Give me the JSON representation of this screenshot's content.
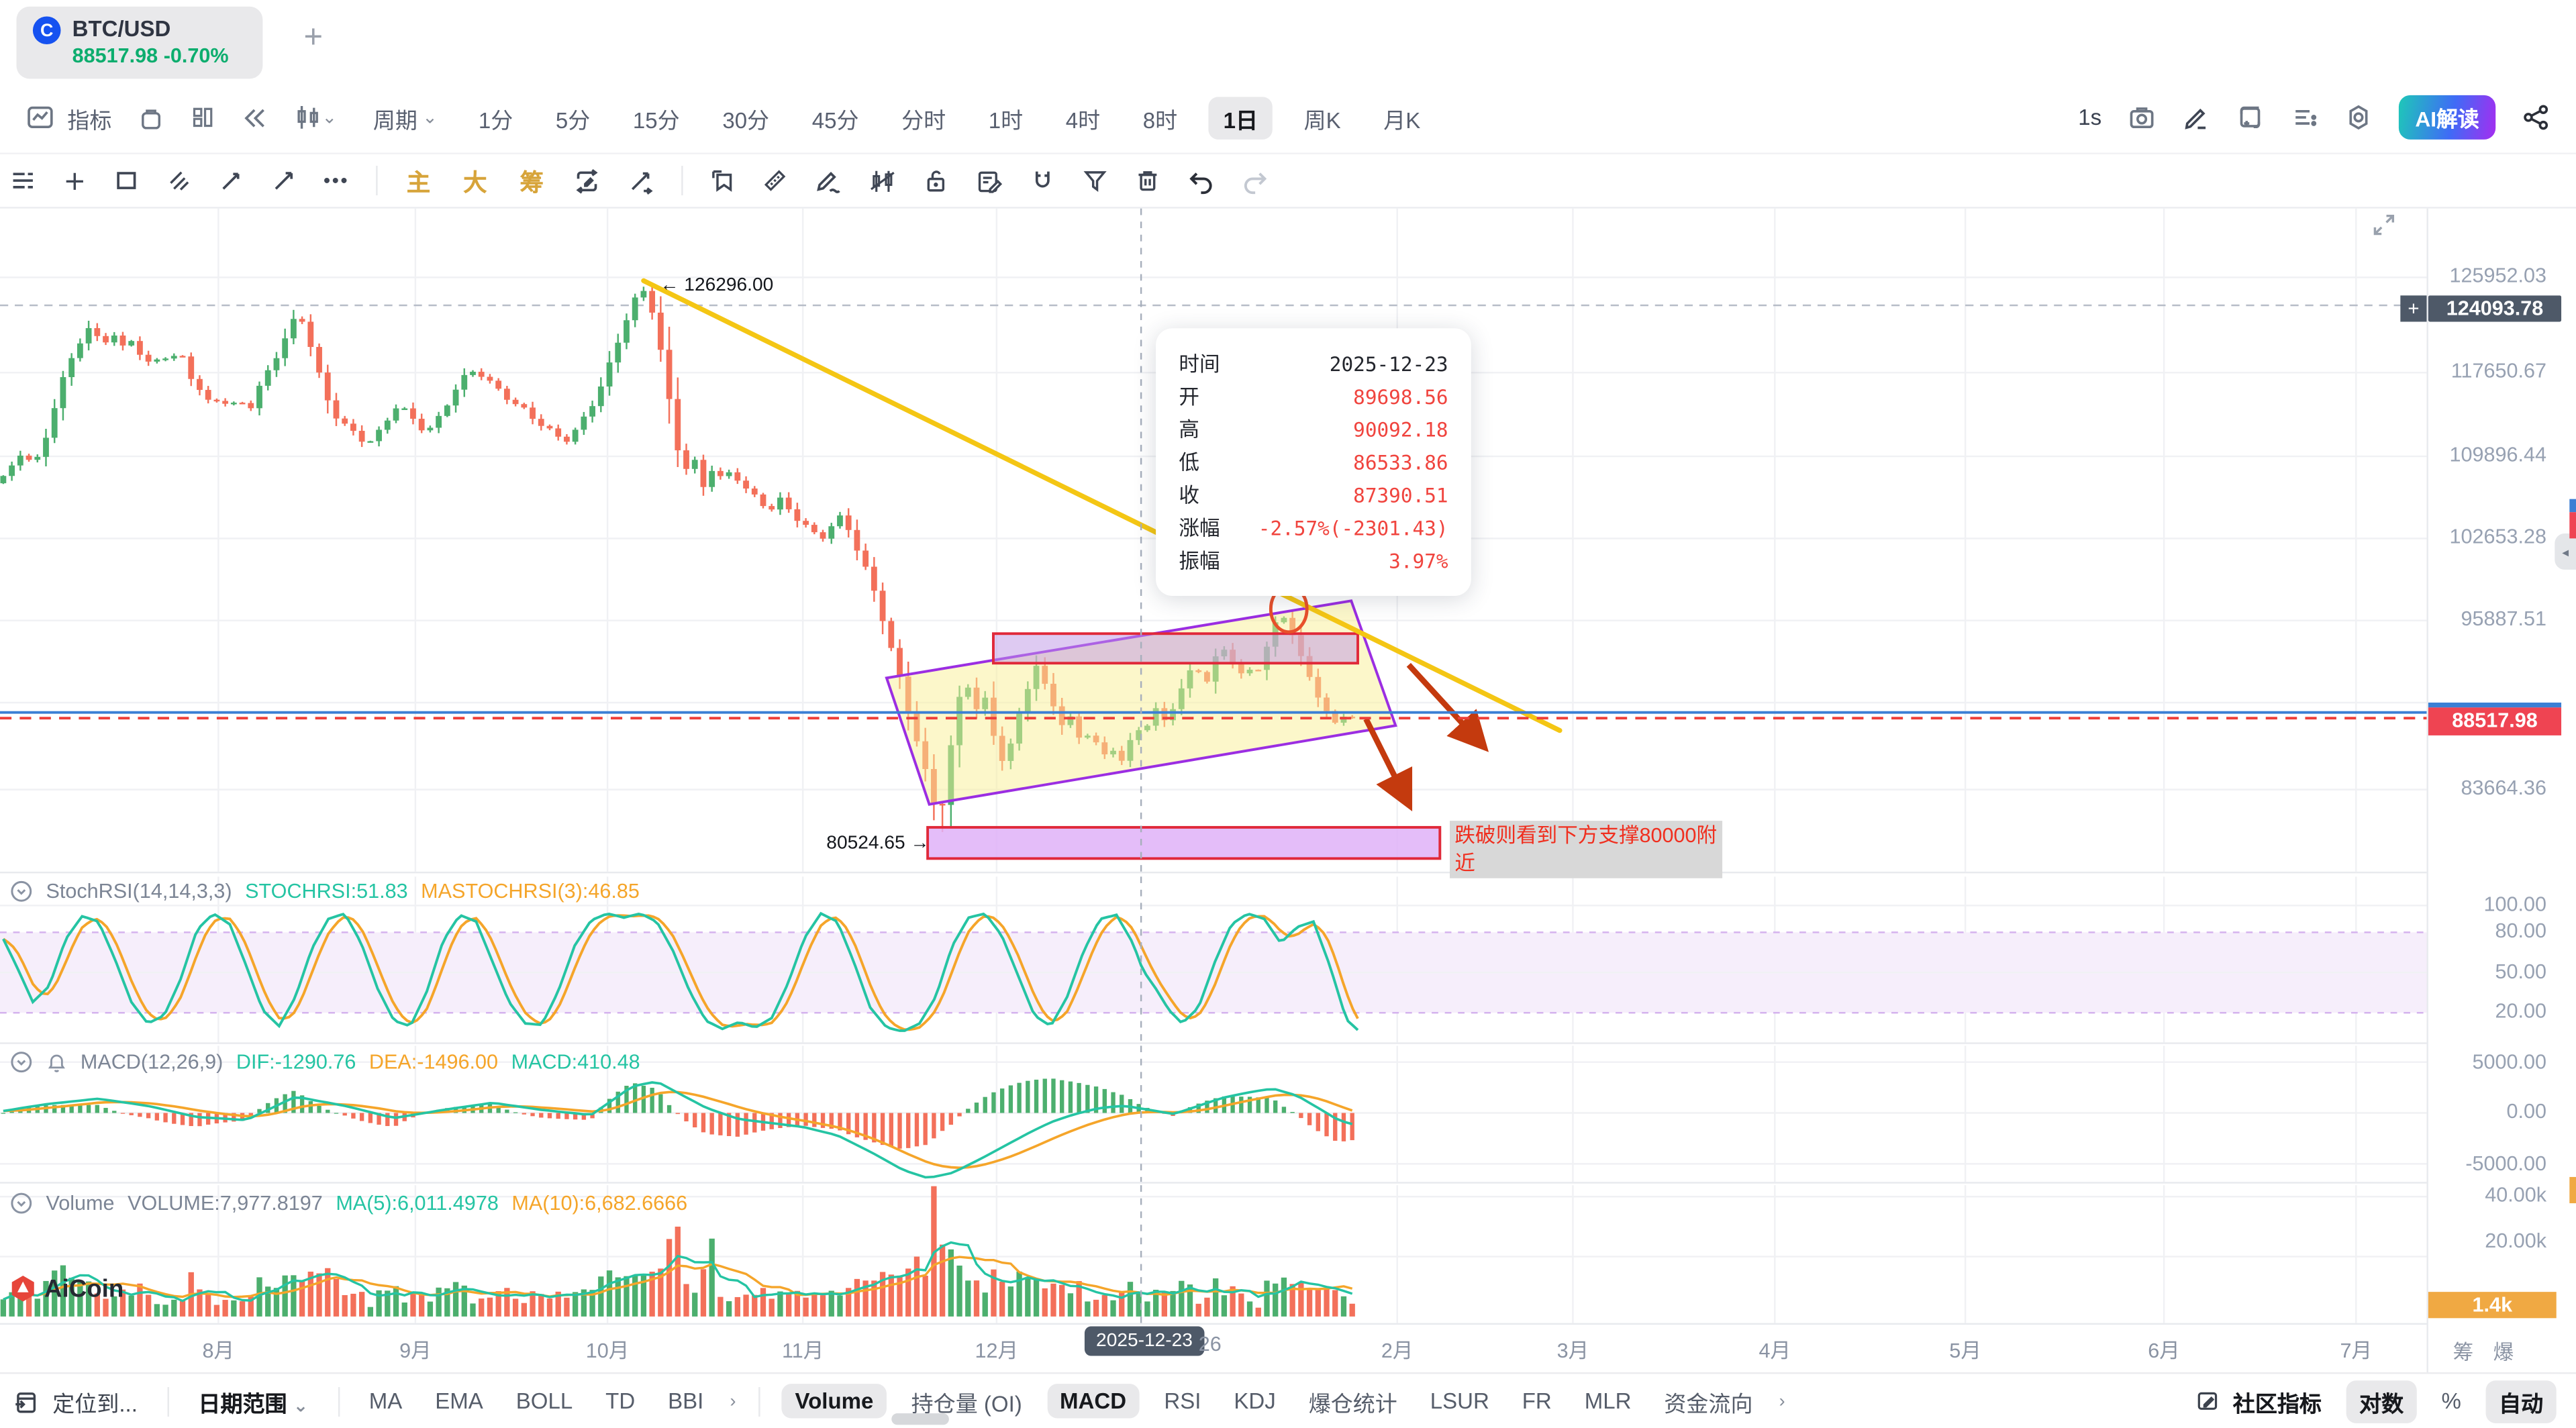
{
  "glyphs": {
    "add_tab": "+",
    "chevron_down": "⌄",
    "chevron_right": "›",
    "more_dots": "•••",
    "collapse_left": "◂",
    "plus_badge": "+",
    "coin": "C"
  },
  "tab": {
    "symbol": "BTC/USD",
    "price": "88517.98",
    "change": "-0.70%"
  },
  "toolbar": {
    "indicator": "指标",
    "period": "周期",
    "refresh": "1s",
    "ai": "AI解读",
    "timeframes": [
      "1分",
      "5分",
      "15分",
      "30分",
      "45分",
      "分时",
      "1时",
      "4时",
      "8时",
      "1日",
      "周K",
      "月K"
    ],
    "active_timeframe": "1日"
  },
  "drawbar": {
    "main": "主",
    "big": "大",
    "chips": "筹"
  },
  "tooltip": {
    "rows": [
      {
        "label": "时间",
        "value": "2025-12-23",
        "dark": true
      },
      {
        "label": "开",
        "value": "89698.56"
      },
      {
        "label": "高",
        "value": "90092.18"
      },
      {
        "label": "低",
        "value": "86533.86"
      },
      {
        "label": "收",
        "value": "87390.51"
      },
      {
        "label": "涨幅",
        "value": "-2.57%(-2301.43)"
      },
      {
        "label": "振幅",
        "value": "3.97%"
      }
    ]
  },
  "watermark": "AiCoin",
  "bottom_bar": {
    "locate": "定位到...",
    "date_range": "日期范围",
    "left_indicators": [
      "MA",
      "EMA",
      "BOLL",
      "TD",
      "BBI"
    ],
    "sub_indicators": [
      "Volume",
      "持仓量 (OI)",
      "MACD",
      "RSI",
      "KDJ",
      "爆仓统计",
      "LSUR",
      "FR",
      "MLR",
      "资金流向"
    ],
    "active_subs": [
      "Volume",
      "MACD"
    ],
    "community": "社区指标",
    "log": "对数",
    "percent": "%",
    "auto": "自动"
  },
  "chart_data": {
    "type": "candlestick",
    "symbol": "BTC/USD",
    "scale": "log",
    "hovered_candle": {
      "date": "2025-12-23",
      "open": 89698.56,
      "high": 90092.18,
      "low": 86533.86,
      "close": 87390.51,
      "change_pct": -2.57,
      "change_abs": -2301.43,
      "amplitude_pct": 3.97
    },
    "y_axis": {
      "tick_labels": [
        "125952.03",
        "117650.67",
        "109896.44",
        "102653.28",
        "95887.51",
        "83664.36"
      ],
      "crosshair_label": "124093.78",
      "last_price_label": "88517.98",
      "anchor_ticks": [
        [
          117650.67,
          227
        ],
        [
          95887.51,
          378
        ]
      ]
    },
    "x_axis": {
      "months": [
        "8月",
        "9月",
        "10月",
        "11月",
        "12月"
      ],
      "future_months": [
        "2月",
        "3月",
        "4月",
        "5月",
        "6月",
        "7月"
      ],
      "crosshair_date": "2025-12-23",
      "day26": "26"
    },
    "annotations": {
      "peak_label": "← 126296.00",
      "peak_value": 126296.0,
      "support_label": "80524.65 →",
      "support_value": 80524.65,
      "note": "跌破则看到下方支撑80000附近"
    },
    "price_keypoints": [
      [
        2,
        107800
      ],
      [
        8,
        109200
      ],
      [
        14,
        110400
      ],
      [
        20,
        108600
      ],
      [
        26,
        110800
      ],
      [
        32,
        113600
      ],
      [
        38,
        116800
      ],
      [
        44,
        119400
      ],
      [
        50,
        121000
      ],
      [
        56,
        122200
      ],
      [
        62,
        120400
      ],
      [
        68,
        121600
      ],
      [
        74,
        120000
      ],
      [
        80,
        121000
      ],
      [
        86,
        119200
      ],
      [
        92,
        118200
      ],
      [
        98,
        119600
      ],
      [
        104,
        118800
      ],
      [
        110,
        119600
      ],
      [
        116,
        117400
      ],
      [
        122,
        115800
      ],
      [
        128,
        114600
      ],
      [
        134,
        115400
      ],
      [
        140,
        114200
      ],
      [
        146,
        115000
      ],
      [
        152,
        114200
      ],
      [
        158,
        116200
      ],
      [
        164,
        118000
      ],
      [
        170,
        119800
      ],
      [
        176,
        121800
      ],
      [
        182,
        123800
      ],
      [
        188,
        121000
      ],
      [
        194,
        117600
      ],
      [
        200,
        114800
      ],
      [
        206,
        113200
      ],
      [
        212,
        112400
      ],
      [
        218,
        111600
      ],
      [
        224,
        111000
      ],
      [
        230,
        111800
      ],
      [
        236,
        113200
      ],
      [
        242,
        114600
      ],
      [
        248,
        113800
      ],
      [
        254,
        112800
      ],
      [
        260,
        112000
      ],
      [
        266,
        113000
      ],
      [
        272,
        114600
      ],
      [
        278,
        116200
      ],
      [
        284,
        117400
      ],
      [
        290,
        118000
      ],
      [
        296,
        117000
      ],
      [
        302,
        116200
      ],
      [
        308,
        115400
      ],
      [
        314,
        114600
      ],
      [
        320,
        114000
      ],
      [
        326,
        113200
      ],
      [
        332,
        112400
      ],
      [
        338,
        111800
      ],
      [
        344,
        111200
      ],
      [
        350,
        112000
      ],
      [
        356,
        113400
      ],
      [
        362,
        115000
      ],
      [
        368,
        117000
      ],
      [
        374,
        119600
      ],
      [
        380,
        122400
      ],
      [
        386,
        124800
      ],
      [
        392,
        125800
      ],
      [
        398,
        123600
      ],
      [
        404,
        118400
      ],
      [
        410,
        112600
      ],
      [
        416,
        108200
      ],
      [
        422,
        109800
      ],
      [
        428,
        107000
      ],
      [
        434,
        108800
      ],
      [
        440,
        107600
      ],
      [
        446,
        108600
      ],
      [
        452,
        107200
      ],
      [
        458,
        106400
      ],
      [
        464,
        105600
      ],
      [
        470,
        105200
      ],
      [
        476,
        106000
      ],
      [
        482,
        104800
      ],
      [
        488,
        104000
      ],
      [
        494,
        103200
      ],
      [
        500,
        102600
      ],
      [
        506,
        103600
      ],
      [
        512,
        104400
      ],
      [
        518,
        103200
      ],
      [
        524,
        101000
      ],
      [
        530,
        99200
      ],
      [
        536,
        96800
      ],
      [
        542,
        94000
      ],
      [
        548,
        91400
      ],
      [
        554,
        88600
      ],
      [
        560,
        86200
      ],
      [
        566,
        83600
      ],
      [
        572,
        81200
      ],
      [
        576,
        83800
      ],
      [
        580,
        87000
      ],
      [
        584,
        89800
      ],
      [
        588,
        91400
      ],
      [
        592,
        90200
      ],
      [
        596,
        88600
      ],
      [
        600,
        89800
      ],
      [
        604,
        87800
      ],
      [
        608,
        86200
      ],
      [
        612,
        85000
      ],
      [
        616,
        86600
      ],
      [
        620,
        88600
      ],
      [
        624,
        90000
      ],
      [
        628,
        91600
      ],
      [
        632,
        92400
      ],
      [
        636,
        91000
      ],
      [
        640,
        90000
      ],
      [
        644,
        88800
      ],
      [
        648,
        87600
      ],
      [
        652,
        88400
      ],
      [
        656,
        87400
      ],
      [
        660,
        86600
      ],
      [
        664,
        87800
      ],
      [
        668,
        86400
      ],
      [
        672,
        85600
      ],
      [
        676,
        86800
      ],
      [
        680,
        85800
      ],
      [
        684,
        85200
      ],
      [
        688,
        86600
      ],
      [
        692,
        88000
      ],
      [
        696,
        87390
      ],
      [
        700,
        88200
      ],
      [
        704,
        89000
      ],
      [
        708,
        88200
      ],
      [
        712,
        88800
      ],
      [
        716,
        89600
      ],
      [
        720,
        90600
      ],
      [
        724,
        91800
      ],
      [
        728,
        92600
      ],
      [
        732,
        91600
      ],
      [
        736,
        91000
      ],
      [
        740,
        92800
      ],
      [
        744,
        94000
      ],
      [
        748,
        93400
      ],
      [
        752,
        92200
      ],
      [
        756,
        91600
      ],
      [
        760,
        92400
      ],
      [
        764,
        91400
      ],
      [
        768,
        92800
      ],
      [
        772,
        93800
      ],
      [
        776,
        95400
      ],
      [
        780,
        96600
      ],
      [
        784,
        96000
      ],
      [
        788,
        94400
      ],
      [
        792,
        93000
      ],
      [
        796,
        92200
      ],
      [
        800,
        90800
      ],
      [
        804,
        89800
      ],
      [
        808,
        88800
      ],
      [
        812,
        88000
      ],
      [
        816,
        88400
      ],
      [
        820,
        89000
      ],
      [
        824,
        87600
      ],
      [
        828,
        88518
      ]
    ],
    "stochrsi": {
      "params": "StochRSI(14,14,3,3)",
      "k_label": "STOCHRSI:51.83",
      "d_label": "MASTOCHRSI(3):46.85",
      "tick_labels": [
        "100.00",
        "80.00",
        "50.00",
        "20.00"
      ],
      "k_keypoints": [
        [
          2,
          75
        ],
        [
          10,
          55
        ],
        [
          20,
          28
        ],
        [
          30,
          40
        ],
        [
          40,
          75
        ],
        [
          50,
          92
        ],
        [
          60,
          88
        ],
        [
          70,
          60
        ],
        [
          80,
          28
        ],
        [
          90,
          12
        ],
        [
          100,
          18
        ],
        [
          110,
          45
        ],
        [
          120,
          82
        ],
        [
          130,
          94
        ],
        [
          140,
          86
        ],
        [
          150,
          55
        ],
        [
          160,
          22
        ],
        [
          170,
          10
        ],
        [
          180,
          32
        ],
        [
          190,
          68
        ],
        [
          200,
          90
        ],
        [
          210,
          94
        ],
        [
          220,
          72
        ],
        [
          230,
          38
        ],
        [
          240,
          14
        ],
        [
          250,
          10
        ],
        [
          260,
          36
        ],
        [
          270,
          74
        ],
        [
          280,
          93
        ],
        [
          290,
          88
        ],
        [
          300,
          58
        ],
        [
          310,
          28
        ],
        [
          320,
          12
        ],
        [
          330,
          11
        ],
        [
          340,
          36
        ],
        [
          350,
          70
        ],
        [
          360,
          89
        ],
        [
          370,
          94
        ],
        [
          380,
          91
        ],
        [
          390,
          94
        ],
        [
          400,
          88
        ],
        [
          410,
          66
        ],
        [
          420,
          36
        ],
        [
          430,
          14
        ],
        [
          440,
          8
        ],
        [
          450,
          13
        ],
        [
          460,
          9
        ],
        [
          470,
          16
        ],
        [
          480,
          42
        ],
        [
          490,
          76
        ],
        [
          500,
          94
        ],
        [
          510,
          88
        ],
        [
          520,
          58
        ],
        [
          530,
          24
        ],
        [
          540,
          9
        ],
        [
          550,
          6
        ],
        [
          560,
          12
        ],
        [
          570,
          32
        ],
        [
          580,
          70
        ],
        [
          590,
          91
        ],
        [
          600,
          94
        ],
        [
          610,
          78
        ],
        [
          620,
          48
        ],
        [
          630,
          18
        ],
        [
          640,
          10
        ],
        [
          650,
          32
        ],
        [
          660,
          66
        ],
        [
          670,
          90
        ],
        [
          680,
          93
        ],
        [
          690,
          72
        ],
        [
          696,
          52
        ],
        [
          704,
          38
        ],
        [
          712,
          22
        ],
        [
          720,
          12
        ],
        [
          730,
          24
        ],
        [
          740,
          58
        ],
        [
          750,
          86
        ],
        [
          760,
          94
        ],
        [
          770,
          90
        ],
        [
          780,
          72
        ],
        [
          790,
          84
        ],
        [
          800,
          88
        ],
        [
          810,
          55
        ],
        [
          820,
          15
        ],
        [
          828,
          6
        ]
      ]
    },
    "macd": {
      "params": "MACD(12,26,9)",
      "dif_label": "DIF:-1290.76",
      "dea_label": "DEA:-1496.00",
      "macd_label": "MACD:410.48",
      "tick_labels": [
        "5000.00",
        "0.00",
        "-5000.00"
      ],
      "dif_keypoints": [
        [
          2,
          200
        ],
        [
          30,
          900
        ],
        [
          60,
          1400
        ],
        [
          90,
          700
        ],
        [
          120,
          -400
        ],
        [
          150,
          -700
        ],
        [
          180,
          1600
        ],
        [
          210,
          700
        ],
        [
          240,
          -500
        ],
        [
          270,
          300
        ],
        [
          300,
          1000
        ],
        [
          330,
          300
        ],
        [
          360,
          -200
        ],
        [
          385,
          2600
        ],
        [
          400,
          3100
        ],
        [
          415,
          1800
        ],
        [
          430,
          500
        ],
        [
          450,
          -600
        ],
        [
          470,
          -1000
        ],
        [
          490,
          -1400
        ],
        [
          510,
          -2200
        ],
        [
          530,
          -3800
        ],
        [
          550,
          -5600
        ],
        [
          565,
          -6400
        ],
        [
          580,
          -5900
        ],
        [
          595,
          -4700
        ],
        [
          610,
          -3400
        ],
        [
          625,
          -2100
        ],
        [
          640,
          -900
        ],
        [
          655,
          -100
        ],
        [
          670,
          500
        ],
        [
          685,
          700
        ],
        [
          700,
          300
        ],
        [
          715,
          -100
        ],
        [
          730,
          700
        ],
        [
          745,
          1500
        ],
        [
          760,
          2000
        ],
        [
          775,
          2400
        ],
        [
          790,
          1700
        ],
        [
          805,
          300
        ],
        [
          815,
          -700
        ],
        [
          828,
          -1290.76
        ]
      ]
    },
    "volume": {
      "label": "Volume",
      "volume_label": "VOLUME:7,977.8197",
      "ma5_label": "MA(5):6,011.4978",
      "ma10_label": "MA(10):6,682.6666",
      "tick_labels": [
        "40.00k",
        "20.00k"
      ],
      "badge": "1.4k",
      "spikes": [
        [
          183,
          12000
        ],
        [
          392,
          14000
        ],
        [
          404,
          16000
        ],
        [
          414,
          30000
        ],
        [
          433,
          26000
        ],
        [
          530,
          12000
        ],
        [
          542,
          14000
        ],
        [
          552,
          16000
        ],
        [
          560,
          20000
        ],
        [
          570,
          43500
        ],
        [
          576,
          24000
        ],
        [
          584,
          17000
        ],
        [
          590,
          12000
        ],
        [
          776,
          11000
        ],
        [
          784,
          13000
        ],
        [
          800,
          9000
        ]
      ]
    }
  }
}
